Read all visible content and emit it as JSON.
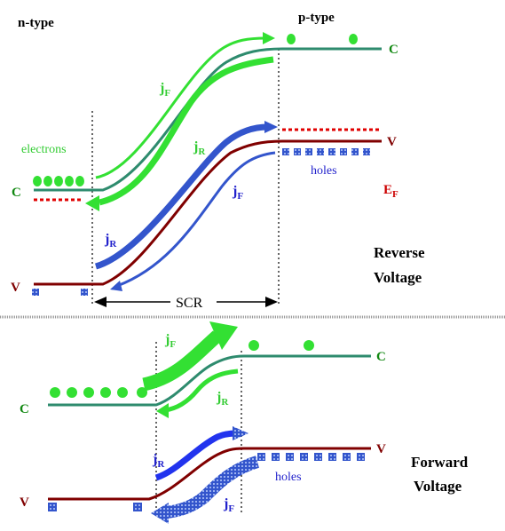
{
  "top_panel": {
    "n_type_label": "n-type",
    "p_type_label": "p-type",
    "conduction_label_left": "C",
    "conduction_label_right": "C",
    "valence_label_left": "V",
    "valence_label_right": "V",
    "fermi_label": "E",
    "fermi_sub": "F",
    "electrons_label": "electrons",
    "holes_label": "holes",
    "jF_upper": "j",
    "jF_upper_sub": "F",
    "jR_upper": "j",
    "jR_upper_sub": "R",
    "jR_lower": "j",
    "jR_lower_sub": "R",
    "jF_lower": "j",
    "jF_lower_sub": "F",
    "scr_label": "SCR",
    "bias_label_line1": "Reverse",
    "bias_label_line2": "Voltage"
  },
  "bottom_panel": {
    "conduction_label_left": "C",
    "conduction_label_right": "C",
    "valence_label_left": "V",
    "valence_label_right": "V",
    "holes_label": "holes",
    "jF_upper": "j",
    "jF_upper_sub": "F",
    "jR_upper": "j",
    "jR_upper_sub": "R",
    "jR_lower": "j",
    "jR_lower_sub": "R",
    "jF_lower": "j",
    "jF_lower_sub": "F",
    "bias_label_line1": "Forward",
    "bias_label_line2": "Voltage"
  },
  "colors": {
    "conduction_band": "#2e8b6e",
    "valence_band": "#800000",
    "fermi_level": "#e00000",
    "electron_green": "#33e033",
    "electron_label": "#33cc33",
    "hole_blue": "#3355cc",
    "label_blue": "#2222cc",
    "label_green": "#33cc33",
    "dark_green": "#118811",
    "red_label": "#cc0000"
  }
}
